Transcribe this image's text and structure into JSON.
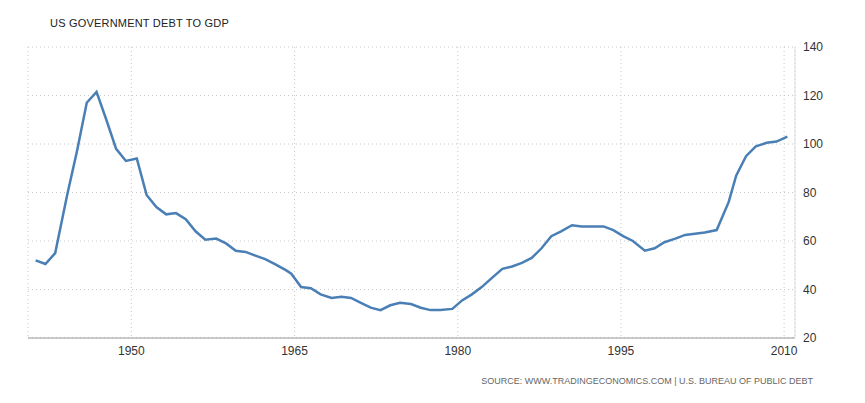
{
  "chart_data": {
    "type": "line",
    "title": "US GOVERNMENT DEBT TO GDP",
    "annotations": [
      "SOURCE: WWW.TRADINGECONOMICS.COM | U.S. BUREAU OF PUBLIC DEBT"
    ],
    "x": [
      1941.2,
      1942.1,
      1943.0,
      1944.1,
      1945.0,
      1945.9,
      1946.8,
      1947.7,
      1948.6,
      1949.5,
      1950.5,
      1951.4,
      1952.3,
      1953.2,
      1954.1,
      1955.0,
      1955.9,
      1956.8,
      1957.8,
      1958.7,
      1959.6,
      1960.5,
      1961.4,
      1962.3,
      1963.2,
      1964.2,
      1964.7,
      1965.6,
      1966.5,
      1967.4,
      1968.4,
      1969.3,
      1970.2,
      1971.1,
      1972.0,
      1972.9,
      1973.8,
      1974.7,
      1975.7,
      1976.6,
      1977.5,
      1978.4,
      1979.5,
      1980.4,
      1981.3,
      1982.2,
      1983.2,
      1984.1,
      1985.0,
      1985.9,
      1986.8,
      1987.7,
      1988.6,
      1989.5,
      1990.5,
      1991.4,
      1992.3,
      1993.4,
      1994.3,
      1995.2,
      1996.1,
      1997.2,
      1998.1,
      1999.0,
      2000.0,
      2000.9,
      2001.8,
      2002.7,
      2003.8,
      2004.9,
      2005.6,
      2006.5,
      2007.4,
      2008.4,
      2009.3,
      2010.3
    ],
    "values": [
      52,
      50.5,
      55,
      79,
      97,
      117,
      121.5,
      110,
      98,
      93,
      94,
      79,
      74,
      71,
      71.5,
      69,
      64,
      60.5,
      61,
      59,
      56,
      55.5,
      54,
      52.5,
      50.5,
      48,
      46.5,
      41,
      40.5,
      38,
      36.5,
      37,
      36.5,
      34.5,
      32.5,
      31.5,
      33.5,
      34.5,
      34,
      32.5,
      31.5,
      31.5,
      32,
      35.5,
      38,
      41,
      45,
      48.5,
      49.5,
      51,
      53,
      57,
      62,
      64,
      66.5,
      66,
      66,
      66,
      64.5,
      62,
      60,
      56,
      57,
      59.5,
      61,
      62.5,
      63,
      63.5,
      64.5,
      76,
      87,
      95,
      99,
      100.5,
      101,
      103
    ],
    "color": "#4a7fb5",
    "xlim": [
      1940.5,
      2011
    ],
    "xticks": [
      1950,
      1965,
      1980,
      1995,
      2010
    ],
    "ylim": [
      20,
      140
    ],
    "yticks": [
      20,
      40,
      60,
      80,
      100,
      120,
      140
    ],
    "grid": true
  }
}
